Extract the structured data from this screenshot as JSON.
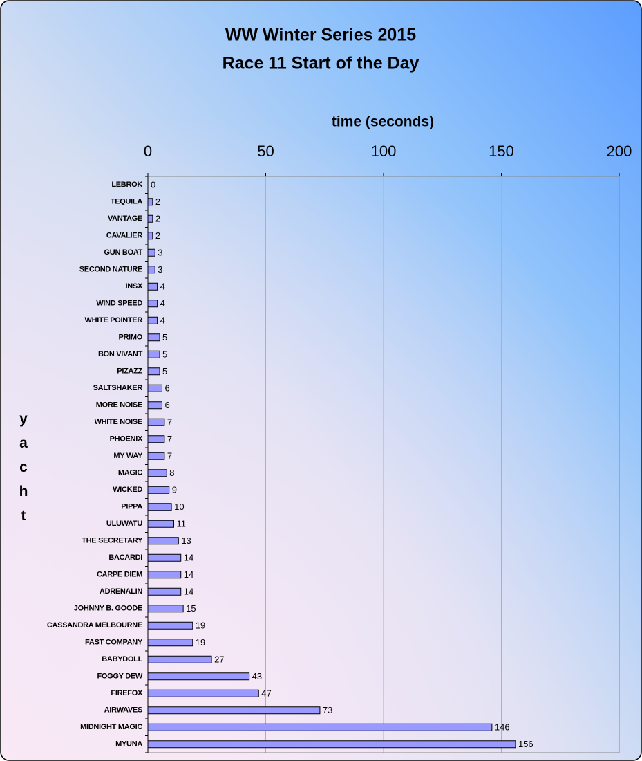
{
  "chart_data": {
    "type": "bar",
    "orientation": "horizontal",
    "title": [
      "WW Winter Series 2015",
      "Race 11 Start of the Day"
    ],
    "x_label": "time (seconds)",
    "y_label": "yacht",
    "categories": [
      "LEBROK",
      "TEQUILA",
      "VANTAGE",
      "CAVALIER",
      "GUN BOAT",
      "SECOND NATURE",
      "INSX",
      "WIND SPEED",
      "WHITE POINTER",
      "PRIMO",
      "BON VIVANT",
      "PIZAZZ",
      "SALTSHAKER",
      "MORE NOISE",
      "WHITE NOISE",
      "PHOENIX",
      "MY WAY",
      "MAGIC",
      "WICKED",
      "PIPPA",
      "ULUWATU",
      "THE SECRETARY",
      "BACARDI",
      "CARPE DIEM",
      "ADRENALIN",
      "JOHNNY B. GOODE",
      "CASSANDRA MELBOURNE",
      "FAST COMPANY",
      "BABYDOLL",
      "FOGGY DEW",
      "FIREFOX",
      "AIRWAVES",
      "MIDNIGHT MAGIC",
      "MYUNA"
    ],
    "values": [
      0,
      2,
      2,
      2,
      3,
      3,
      4,
      4,
      4,
      5,
      5,
      5,
      6,
      6,
      7,
      7,
      7,
      8,
      9,
      10,
      11,
      13,
      14,
      14,
      14,
      15,
      19,
      19,
      27,
      43,
      47,
      73,
      146,
      156
    ],
    "color": "#9999ff",
    "xlim": [
      0,
      200
    ],
    "xticks": [
      0,
      50,
      100,
      150,
      200
    ],
    "grid": true
  }
}
